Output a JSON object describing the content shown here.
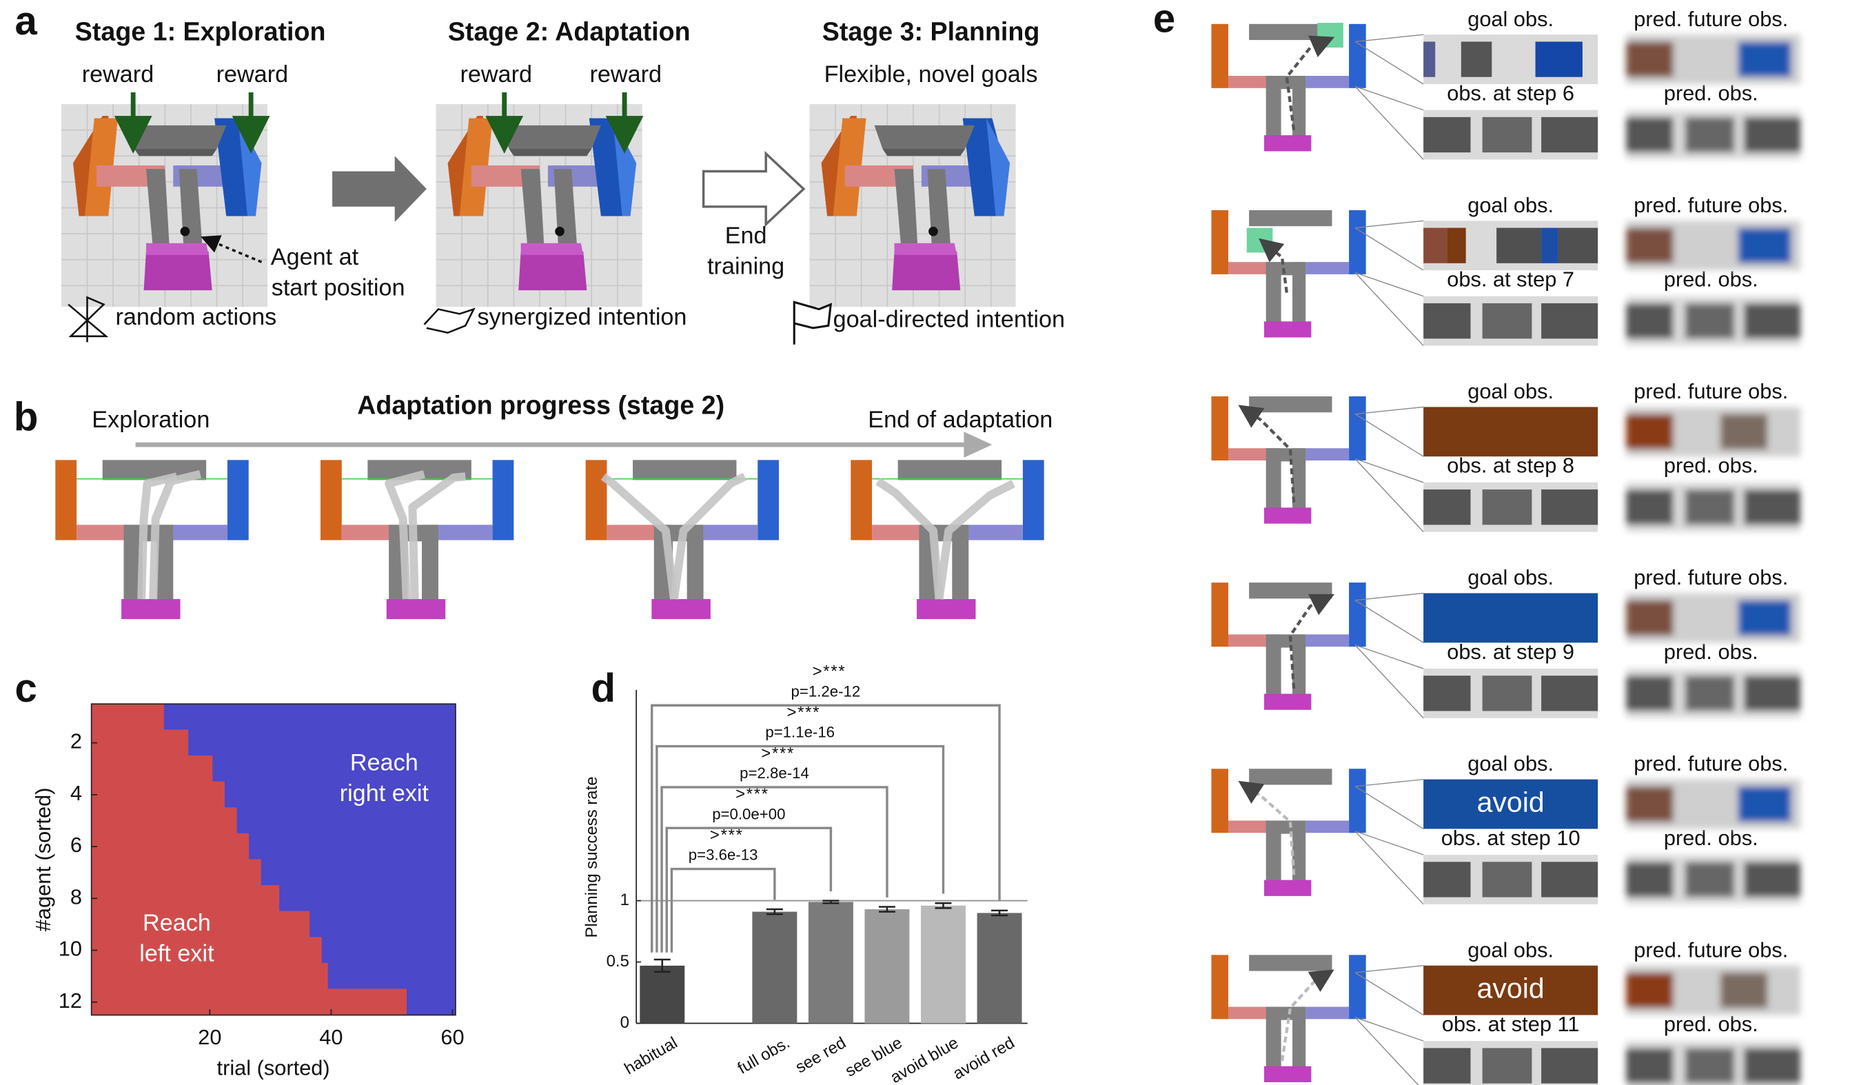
{
  "panel_a": {
    "label": "a",
    "stages": [
      {
        "title": "Stage 1: Exploration",
        "notes": [
          "reward",
          "reward"
        ],
        "caption": "random actions"
      },
      {
        "title": "Stage 2: Adaptation",
        "notes": [
          "reward",
          "reward"
        ],
        "caption": "synergized intention"
      },
      {
        "title": "Stage 3: Planning",
        "notes": [
          "Flexible, novel goals"
        ],
        "caption": "goal-directed intention"
      }
    ],
    "agent_note": [
      "Agent at",
      "start position"
    ],
    "arrow_note": [
      "End",
      "training"
    ]
  },
  "panel_b": {
    "label": "b",
    "title": "Adaptation progress (stage 2)",
    "start": "Exploration",
    "end": "End of adaptation"
  },
  "chart_data": [
    {
      "type": "stacked-barh",
      "label": "c",
      "xlabel": "trial (sorted)",
      "ylabel": "#agent (sorted)",
      "y": [
        1,
        2,
        3,
        4,
        5,
        6,
        7,
        8,
        9,
        10,
        11,
        12
      ],
      "series": [
        {
          "color": "#d04c4c",
          "values": [
            12,
            16,
            20,
            22,
            24,
            26,
            28,
            31,
            36,
            38,
            39,
            52
          ]
        },
        {
          "color": "#4b48c9",
          "values": [
            48,
            44,
            40,
            38,
            36,
            34,
            32,
            29,
            24,
            22,
            21,
            8
          ]
        }
      ],
      "xlim": [
        0.5,
        60.5
      ],
      "xticks": [
        20,
        40,
        60
      ],
      "ylim": [
        12.5,
        0.5
      ],
      "yticks": [
        2,
        4,
        6,
        8,
        10,
        12
      ],
      "annotations": [
        [
          "Reach",
          "right exit"
        ],
        [
          "Reach",
          "left exit"
        ]
      ]
    },
    {
      "type": "bar",
      "label": "d",
      "ylabel": "Planning success rate",
      "categories": [
        "habitual",
        "full obs.",
        "see red",
        "see blue",
        "avoid blue",
        "avoid red"
      ],
      "values": [
        0.47,
        0.91,
        0.99,
        0.93,
        0.96,
        0.9
      ],
      "errors": [
        0.05,
        0.02,
        0.01,
        0.02,
        0.02,
        0.02
      ],
      "colors": [
        "#474747",
        "#696969",
        "#7b7b7b",
        "#9b9b9b",
        "#b9b9b9",
        "#696969"
      ],
      "ylim": [
        0,
        2.72
      ],
      "yticks": [
        0,
        0.5,
        1
      ],
      "hline": 1,
      "comparisons": [
        {
          "stars": ">***",
          "p": "p=3.6e-13"
        },
        {
          "stars": ">***",
          "p": "p=0.0e+00"
        },
        {
          "stars": ">***",
          "p": "p=2.8e-14"
        },
        {
          "stars": ">***",
          "p": "p=1.1e-16"
        },
        {
          "stars": ">***",
          "p": "p=1.2e-12"
        }
      ]
    }
  ],
  "panel_e": {
    "label": "e",
    "rows": [
      {
        "goal": "goal obs.",
        "future": "pred. future obs.",
        "step": "obs. at step 6",
        "pred": "pred. obs."
      },
      {
        "goal": "goal obs.",
        "future": "pred. future obs.",
        "step": "obs. at step 7",
        "pred": "pred. obs."
      },
      {
        "goal": "goal obs.",
        "future": "pred. future obs.",
        "step": "obs. at step 8",
        "pred": "pred. obs."
      },
      {
        "goal": "goal obs.",
        "future": "pred. future obs.",
        "step": "obs. at step 9",
        "pred": "pred. obs."
      },
      {
        "goal": "goal obs.",
        "future": "pred. future obs.",
        "step": "obs. at step 10",
        "pred": "pred. obs.",
        "overlay": "avoid"
      },
      {
        "goal": "goal obs.",
        "future": "pred. future obs.",
        "step": "obs. at step 11",
        "pred": "pred. obs.",
        "overlay": "avoid"
      }
    ]
  }
}
